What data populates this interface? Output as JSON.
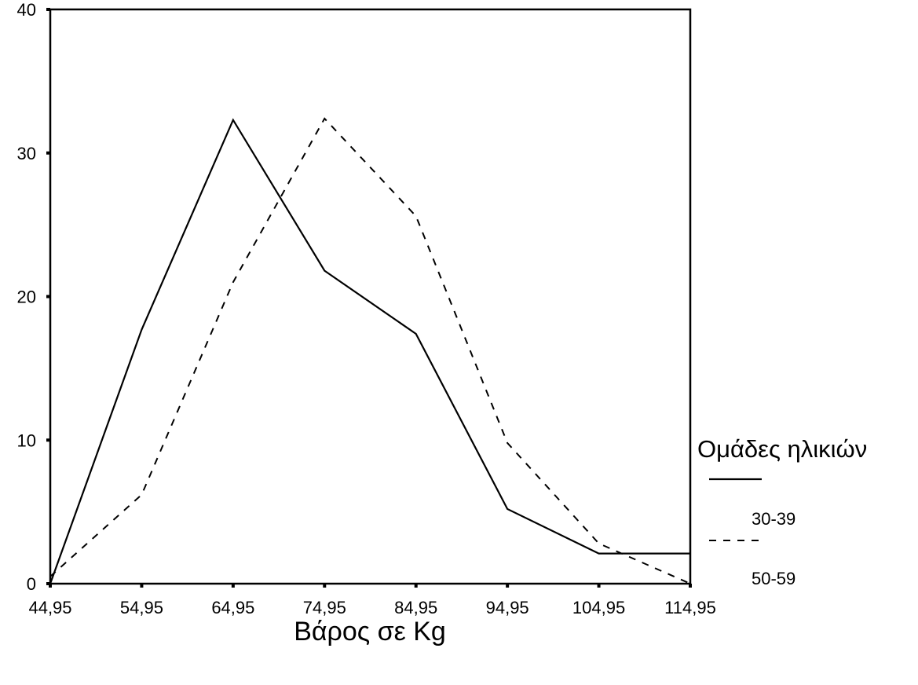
{
  "chart_data": {
    "type": "line",
    "title": "",
    "xlabel": "Βάρος σε Kg",
    "ylabel": "",
    "x": [
      44.95,
      54.95,
      64.95,
      74.95,
      84.95,
      94.95,
      104.95,
      114.95
    ],
    "x_tick_labels": [
      "44,95",
      "54,95",
      "64,95",
      "74,95",
      "84,95",
      "94,95",
      "104,95",
      "114,95"
    ],
    "y_ticks": [
      0,
      10,
      20,
      30,
      40
    ],
    "xlim": [
      44.95,
      114.95
    ],
    "ylim": [
      0,
      40
    ],
    "grid": false,
    "legend": {
      "title": "Ομάδες ηλικιών",
      "placement": "right"
    },
    "series": [
      {
        "name": "30-39",
        "style": "solid",
        "values": [
          0,
          17.7,
          32.3,
          21.8,
          17.4,
          5.2,
          2.1,
          2.1
        ]
      },
      {
        "name": "50-59",
        "style": "dashed",
        "values": [
          0.5,
          6.2,
          21,
          32.4,
          25.6,
          9.8,
          2.8,
          0
        ]
      }
    ]
  }
}
